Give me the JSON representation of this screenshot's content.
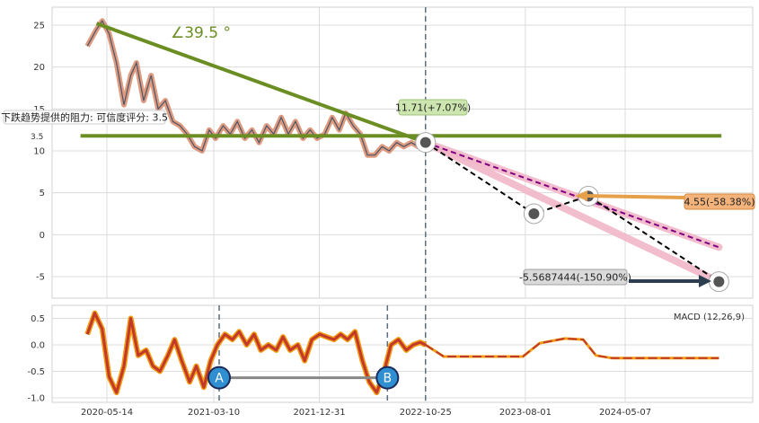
{
  "chart_data": [
    {
      "type": "line",
      "panel": "price",
      "ylim": [
        -7,
        27
      ],
      "yticks": [
        -5,
        0,
        5,
        10,
        15,
        20,
        25
      ],
      "grid": true,
      "x_dates": [
        "2020-05-14",
        "2021-03-10",
        "2021-12-31",
        "2022-10-25",
        "2023-08-01",
        "2024-05-07"
      ],
      "price_series": {
        "name": "price",
        "x": [
          "2020-03-20",
          "2020-04-15",
          "2020-05-01",
          "2020-05-20",
          "2020-06-10",
          "2020-07-01",
          "2020-07-20",
          "2020-08-05",
          "2020-08-25",
          "2020-09-15",
          "2020-10-05",
          "2020-10-25",
          "2020-11-15",
          "2020-12-05",
          "2020-12-25",
          "2021-01-15",
          "2021-02-05",
          "2021-02-25",
          "2021-03-15",
          "2021-04-05",
          "2021-04-25",
          "2021-05-15",
          "2021-06-05",
          "2021-06-25",
          "2021-07-15",
          "2021-08-05",
          "2021-08-25",
          "2021-09-15",
          "2021-10-05",
          "2021-10-25",
          "2021-11-15",
          "2021-12-05",
          "2021-12-25",
          "2022-01-15",
          "2022-02-05",
          "2022-02-25",
          "2022-03-15",
          "2022-04-05",
          "2022-04-25",
          "2022-05-15",
          "2022-06-05",
          "2022-06-25",
          "2022-07-15",
          "2022-08-05",
          "2022-08-25",
          "2022-09-15",
          "2022-10-05",
          "2022-10-25"
        ],
        "y": [
          22.5,
          24.5,
          25.5,
          24.0,
          20.5,
          15.5,
          19.0,
          20.5,
          16.0,
          19.0,
          15.0,
          16.0,
          13.5,
          13.0,
          12.0,
          10.5,
          10.0,
          12.5,
          11.5,
          13.0,
          12.0,
          13.5,
          11.5,
          12.5,
          11.0,
          13.0,
          12.0,
          14.0,
          12.0,
          13.5,
          11.5,
          12.5,
          11.5,
          12.0,
          14.0,
          12.5,
          14.5,
          13.0,
          12.0,
          9.5,
          9.5,
          10.5,
          10.0,
          11.0,
          10.5,
          11.0,
          10.5,
          11.0
        ]
      },
      "trendlines": [
        {
          "name": "descending-resistance",
          "from": [
            "2020-04-15",
            25.2
          ],
          "to": [
            "2022-10-25",
            11.0
          ],
          "color": "#6b8e23"
        },
        {
          "name": "horizontal-support",
          "from": [
            "2020-03-01",
            11.8
          ],
          "to": [
            "2025-02-01",
            11.8
          ],
          "color": "#6b8e23"
        }
      ],
      "angle_label": "∠39.5 °",
      "projections": [
        {
          "name": "pink-upper",
          "from": [
            "2022-10-25",
            11.0
          ],
          "to": [
            "2025-01-25",
            -1.5
          ],
          "color": "#f1b6c8"
        },
        {
          "name": "pink-lower",
          "from": [
            "2022-10-25",
            11.0
          ],
          "to": [
            "2025-01-25",
            -5.6
          ],
          "color": "#f1b6c8"
        },
        {
          "name": "dashed-upper",
          "from": [
            "2022-10-25",
            11.0
          ],
          "to": [
            "2025-01-25",
            -1.5
          ],
          "color": "#800080"
        },
        {
          "name": "dashed-zigzag",
          "points": [
            [
              "2022-10-25",
              11.0
            ],
            [
              "2023-08-25",
              2.5
            ],
            [
              "2024-01-25",
              4.6
            ],
            [
              "2025-01-25",
              -5.6
            ]
          ],
          "color": "#000000"
        }
      ],
      "markers": [
        {
          "date": "2023-08-25",
          "value": 2.5
        },
        {
          "date": "2024-01-25",
          "value": 4.6
        },
        {
          "date": "2025-01-25",
          "value": -5.6
        },
        {
          "date": "2022-10-25",
          "value": 11.0
        }
      ],
      "annotations": {
        "current": "11.71(+7.07%)",
        "target_up": "4.55(-58.38%)",
        "target_down": "-5.5687444(-150.90%)",
        "resistance_note": "下跌趋势提供的阻力: 可信度评分: 3.5",
        "rating_value": "3.5"
      },
      "vlines": [
        "2022-10-25"
      ]
    },
    {
      "type": "line",
      "panel": "macd",
      "ylim": [
        -1.1,
        0.75
      ],
      "yticks": [
        -1.0,
        -0.5,
        0.0,
        0.5
      ],
      "legend": "MACD (12,26,9)",
      "macd_series": {
        "x": [
          "2020-03-20",
          "2020-04-10",
          "2020-05-01",
          "2020-05-20",
          "2020-06-10",
          "2020-07-01",
          "2020-07-20",
          "2020-08-10",
          "2020-09-01",
          "2020-09-20",
          "2020-10-10",
          "2020-11-01",
          "2020-11-20",
          "2020-12-10",
          "2021-01-01",
          "2021-01-20",
          "2021-02-10",
          "2021-03-01",
          "2021-03-20",
          "2021-04-10",
          "2021-05-01",
          "2021-05-20",
          "2021-06-10",
          "2021-07-01",
          "2021-07-20",
          "2021-08-10",
          "2021-09-01",
          "2021-09-20",
          "2021-10-10",
          "2021-11-01",
          "2021-11-20",
          "2021-12-10",
          "2022-01-01",
          "2022-01-20",
          "2022-02-10",
          "2022-03-01",
          "2022-03-20",
          "2022-04-10",
          "2022-05-01",
          "2022-05-20",
          "2022-06-10",
          "2022-07-01",
          "2022-07-20",
          "2022-08-10",
          "2022-09-01",
          "2022-09-20",
          "2022-10-10",
          "2022-10-25"
        ],
        "y": [
          0.2,
          0.6,
          0.3,
          -0.6,
          -0.9,
          -0.4,
          0.5,
          -0.2,
          -0.1,
          -0.4,
          -0.5,
          -0.2,
          0.1,
          -0.3,
          -0.7,
          -0.4,
          -0.8,
          -0.3,
          0.0,
          0.2,
          0.1,
          0.25,
          0.0,
          0.2,
          -0.1,
          0.0,
          -0.1,
          0.15,
          -0.1,
          0.0,
          -0.3,
          0.1,
          0.2,
          0.15,
          0.1,
          0.2,
          0.1,
          0.25,
          -0.3,
          -0.7,
          -0.9,
          -0.5,
          0.0,
          0.1,
          -0.1,
          0.0,
          0.05,
          0.0
        ]
      },
      "projection": {
        "x": [
          "2022-10-25",
          "2022-12-15",
          "2023-07-25",
          "2023-09-10",
          "2023-11-20",
          "2024-01-10",
          "2024-02-15",
          "2024-04-01",
          "2025-01-25"
        ],
        "y": [
          0.0,
          -0.22,
          -0.22,
          0.03,
          0.12,
          0.1,
          -0.2,
          -0.25,
          -0.25
        ]
      },
      "point_labels": [
        {
          "label": "A",
          "date": "2021-03-25",
          "value": -0.62
        },
        {
          "label": "B",
          "date": "2022-07-10",
          "value": -0.62
        }
      ],
      "vlines": [
        "2021-03-25",
        "2022-07-10",
        "2022-10-25"
      ]
    }
  ]
}
